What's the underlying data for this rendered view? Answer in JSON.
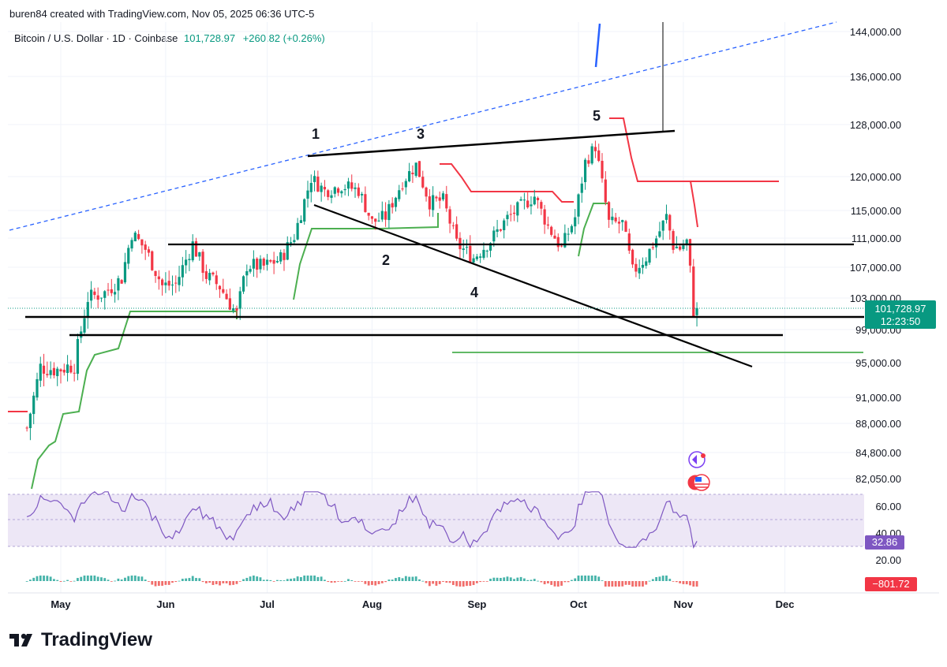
{
  "header": {
    "created": "buren84 created with TradingView.com, Nov 05, 2025 06:36 UTC-5"
  },
  "symbol": {
    "title": "Bitcoin / U.S. Dollar · 1D · Coinbase",
    "price": "101,728.97",
    "change": "+260.82 (+0.26%)"
  },
  "brand": {
    "name": "TradingView"
  },
  "colors": {
    "up": "#089981",
    "down": "#f23645",
    "supertrend_up": "#4caf50",
    "supertrend_down": "#f23645",
    "rsi": "#7e57c2",
    "rsi_band": "#ede7f6",
    "trend_dashed": "#2962ff",
    "annotation": "#000000"
  },
  "chart_data": {
    "type": "candlestick",
    "title": "Bitcoin / U.S. Dollar · 1D · Coinbase",
    "y_ticks": [
      144000,
      136000,
      128000,
      120000,
      115000,
      111000,
      107000,
      103000,
      99000,
      95000,
      91000,
      88000,
      84800,
      82050
    ],
    "y_tick_labels": [
      "144,000.00",
      "136,000.00",
      "128,000.00",
      "120,000.00",
      "115,000.00",
      "111,000.00",
      "107,000.00",
      "103,000.00",
      "99,000.00",
      "95,000.00",
      "91,000.00",
      "88,000.00",
      "84,800.00",
      "82,050.00"
    ],
    "x_tick_labels": [
      "May",
      "Jun",
      "Jul",
      "Aug",
      "Sep",
      "Oct",
      "Nov",
      "Dec"
    ],
    "last_price_label": "101,728.97",
    "countdown_label": "12:23:50",
    "close_path": [
      [
        "2025-04-21",
        87500
      ],
      [
        "2025-04-25",
        94500
      ],
      [
        "2025-04-30",
        94200
      ],
      [
        "2025-05-05",
        94800
      ],
      [
        "2025-05-09",
        103000
      ],
      [
        "2025-05-14",
        103700
      ],
      [
        "2025-05-19",
        105600
      ],
      [
        "2025-05-22",
        111700
      ],
      [
        "2025-05-26",
        109500
      ],
      [
        "2025-05-31",
        104600
      ],
      [
        "2025-06-04",
        104800
      ],
      [
        "2025-06-09",
        110200
      ],
      [
        "2025-06-13",
        105900
      ],
      [
        "2025-06-17",
        104500
      ],
      [
        "2025-06-22",
        100900
      ],
      [
        "2025-06-25",
        107300
      ],
      [
        "2025-06-30",
        107100
      ],
      [
        "2025-07-05",
        108200
      ],
      [
        "2025-07-09",
        111300
      ],
      [
        "2025-07-14",
        119800
      ],
      [
        "2025-07-18",
        117900
      ],
      [
        "2025-07-23",
        118700
      ],
      [
        "2025-07-28",
        118000
      ],
      [
        "2025-08-01",
        113300
      ],
      [
        "2025-08-05",
        114100
      ],
      [
        "2025-08-10",
        119300
      ],
      [
        "2025-08-14",
        121800
      ],
      [
        "2025-08-18",
        116200
      ],
      [
        "2025-08-22",
        116500
      ],
      [
        "2025-08-26",
        110200
      ],
      [
        "2025-08-31",
        108300
      ],
      [
        "2025-09-05",
        110700
      ],
      [
        "2025-09-10",
        113900
      ],
      [
        "2025-09-14",
        115600
      ],
      [
        "2025-09-18",
        117100
      ],
      [
        "2025-09-22",
        112700
      ],
      [
        "2025-09-26",
        109600
      ],
      [
        "2025-09-30",
        114000
      ],
      [
        "2025-10-03",
        122200
      ],
      [
        "2025-10-06",
        124700
      ],
      [
        "2025-10-10",
        113200
      ],
      [
        "2025-10-14",
        113100
      ],
      [
        "2025-10-17",
        106400
      ],
      [
        "2025-10-21",
        108400
      ],
      [
        "2025-10-24",
        111000
      ],
      [
        "2025-10-27",
        114100
      ],
      [
        "2025-10-29",
        110000
      ],
      [
        "2025-10-31",
        109600
      ],
      [
        "2025-11-02",
        110500
      ],
      [
        "2025-11-03",
        106500
      ],
      [
        "2025-11-04",
        101500
      ],
      [
        "2025-11-05",
        101728.97
      ]
    ],
    "annotations": {
      "wave_labels": [
        "1",
        "2",
        "3",
        "4",
        "5"
      ],
      "horizontal_levels": [
        111000,
        101000,
        98800,
        96500
      ]
    },
    "rsi": {
      "ticks": [
        60,
        40,
        20
      ],
      "tick_labels": [
        "60.00",
        "40.00",
        "20.00"
      ],
      "current_label": "32.86",
      "current": 32.86,
      "band": [
        30,
        70
      ]
    },
    "macd": {
      "current_label": "−801.72",
      "current": -801.72
    }
  }
}
